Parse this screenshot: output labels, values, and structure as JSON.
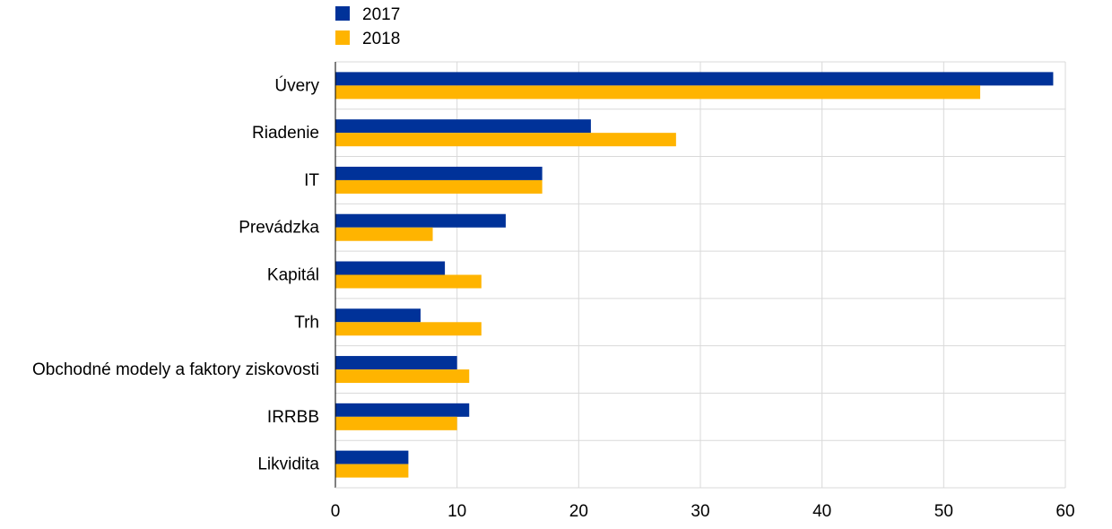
{
  "chart_data": {
    "type": "bar",
    "orientation": "horizontal",
    "title": "",
    "xlabel": "",
    "ylabel": "",
    "categories": [
      "Úvery",
      "Riadenie",
      "IT",
      "Prevádzka",
      "Kapitál",
      "Trh",
      "Obchodné modely a faktory ziskovosti",
      "IRRBB",
      "Likvidita"
    ],
    "series": [
      {
        "name": "2017",
        "color": "#003299",
        "values": [
          59,
          21,
          17,
          14,
          9,
          7,
          10,
          11,
          6
        ]
      },
      {
        "name": "2018",
        "color": "#FFB400",
        "values": [
          53,
          28,
          17,
          8,
          12,
          12,
          11,
          10,
          6
        ]
      }
    ],
    "xlim": [
      0,
      60
    ],
    "ticks": [
      0,
      10,
      20,
      30,
      40,
      50,
      60
    ],
    "grid": true,
    "legend_position": "top-left"
  }
}
